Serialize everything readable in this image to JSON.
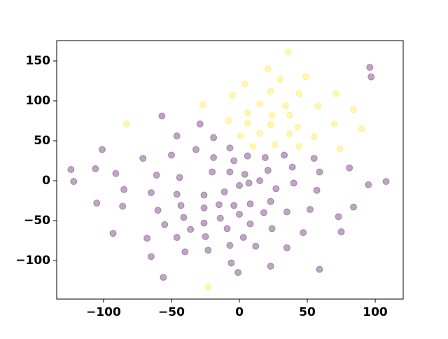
{
  "chart_data": {
    "type": "scatter",
    "xlim": [
      -134.5,
      120.6
    ],
    "ylim": [
      -148.2,
      175.4
    ],
    "xticks": [
      {
        "value": -100,
        "label": "−100"
      },
      {
        "value": -50,
        "label": "−50"
      },
      0,
      50,
      100
    ],
    "yticks": [
      {
        "value": -100,
        "label": "−100"
      },
      {
        "value": -50,
        "label": "−50"
      },
      0,
      50,
      100,
      150
    ],
    "alpha": 0.35,
    "series": [
      {
        "color": "#fde725",
        "x": [
          36,
          21,
          4,
          -5,
          -27,
          49,
          30,
          23,
          44,
          15,
          34,
          71,
          58,
          -8,
          6,
          24,
          37,
          43,
          37,
          55,
          15,
          84,
          6,
          23,
          1,
          10,
          26,
          44,
          70,
          90,
          74,
          -83,
          -23
        ],
        "values": [
          161,
          140,
          121,
          107,
          95,
          130,
          127,
          112,
          109,
          96,
          94,
          109,
          93,
          75,
          85,
          82,
          82,
          67,
          59,
          55,
          59,
          89,
          72,
          70,
          56,
          43,
          45,
          43,
          71,
          65,
          40,
          71,
          -133
        ]
      },
      {
        "color": "#440154",
        "x": [
          96,
          97,
          -57,
          -29,
          -46,
          -19,
          -32,
          -101,
          -71,
          -50,
          -7,
          -19,
          -4,
          6,
          19,
          33,
          55,
          -106,
          -61,
          -91,
          -44,
          -20,
          -7,
          4,
          21,
          39,
          59,
          81,
          -124,
          -122,
          -85,
          -65,
          -46,
          -26,
          -11,
          0,
          7,
          15,
          27,
          40,
          57,
          95,
          108,
          -105,
          -86,
          -60,
          -43,
          -26,
          -15,
          -4,
          8,
          23,
          35,
          52,
          73,
          84,
          -93,
          -68,
          -55,
          -41,
          -26,
          -14,
          -9,
          0,
          8,
          18,
          24,
          47,
          75,
          -46,
          -25,
          -36,
          3,
          12,
          35,
          -7,
          -65,
          -40,
          -23,
          -6,
          -1,
          23,
          59,
          -56
        ],
        "values": [
          142,
          130,
          81,
          71,
          56,
          54,
          39,
          39,
          28,
          32,
          41,
          29,
          25,
          31,
          29,
          32,
          28,
          15,
          7,
          9,
          4,
          11,
          11,
          8,
          13,
          17,
          11,
          16,
          14,
          -1,
          -11,
          -15,
          -17,
          -18,
          -14,
          -6,
          -3,
          0,
          -10,
          -3,
          -12,
          -5,
          -1,
          -28,
          -32,
          -37,
          -31,
          -34,
          -30,
          -31,
          -29,
          -26,
          -39,
          -36,
          -45,
          -33,
          -66,
          -72,
          -55,
          -46,
          -53,
          -47,
          -60,
          -42,
          -54,
          -40,
          -60,
          -65,
          -64,
          -71,
          -70,
          -61,
          -71,
          -82,
          -84,
          -81,
          -95,
          -89,
          -87,
          -103,
          -115,
          -107,
          -111,
          -121
        ]
      }
    ]
  }
}
